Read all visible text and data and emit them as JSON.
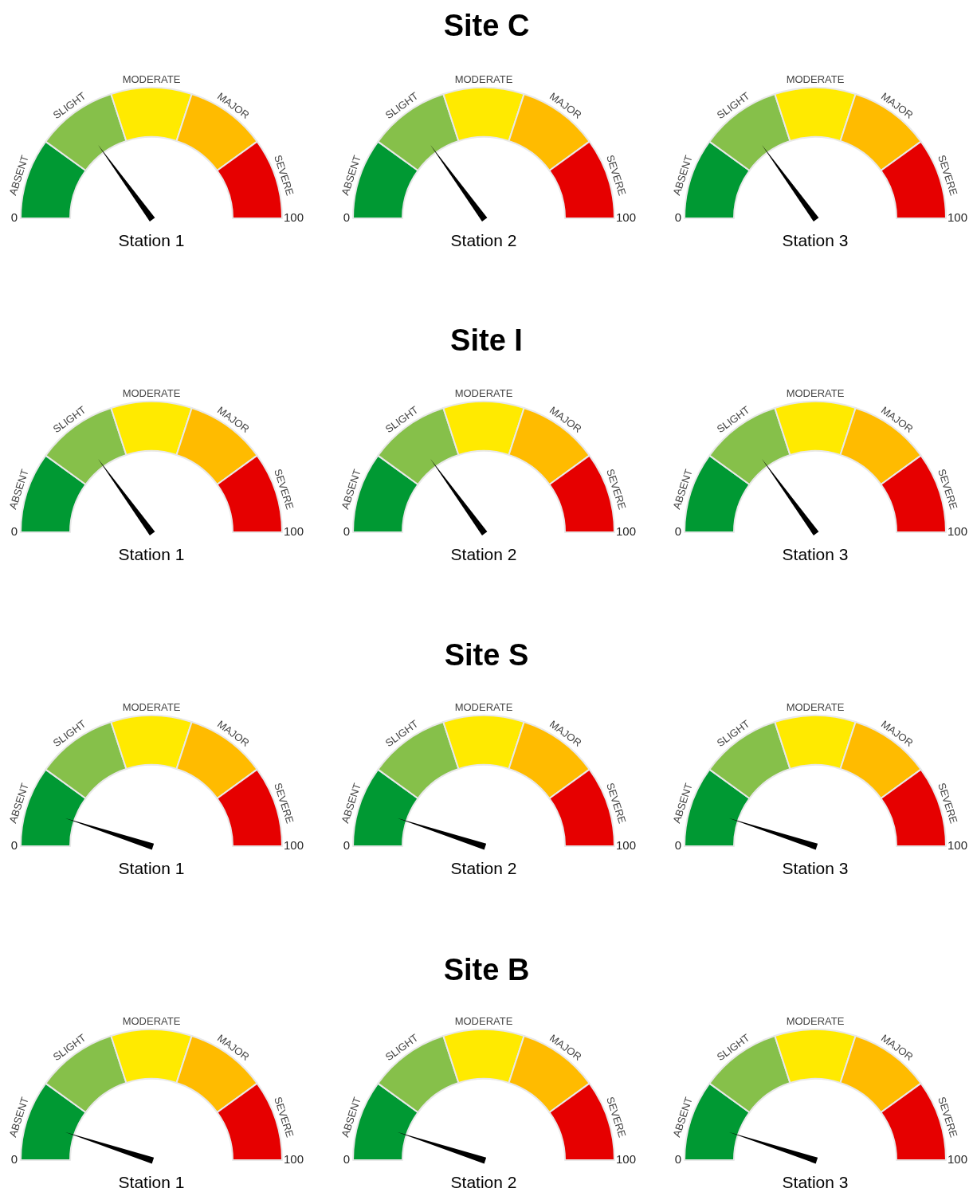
{
  "chart_data": [
    {
      "type": "other",
      "title": "Site C"
    },
    {
      "type": "donut",
      "title": "Station 1",
      "categories": [
        "ABSENT",
        "SLIGHT",
        "MODERATE",
        "MAJOR",
        "SEVERE"
      ],
      "values": [
        20,
        20,
        20,
        20,
        20
      ],
      "colors": [
        "#009933",
        "#86c04a",
        "#ffea00",
        "#ffbb00",
        "#e60000"
      ],
      "needle": "SLIGHT",
      "annotations": [
        "0",
        "100"
      ]
    },
    {
      "type": "donut",
      "title": "Station 2",
      "categories": [
        "ABSENT",
        "SLIGHT",
        "MODERATE",
        "MAJOR",
        "SEVERE"
      ],
      "values": [
        20,
        20,
        20,
        20,
        20
      ],
      "colors": [
        "#009933",
        "#86c04a",
        "#ffea00",
        "#ffbb00",
        "#e60000"
      ],
      "needle": "SLIGHT",
      "annotations": [
        "0",
        "100"
      ]
    },
    {
      "type": "donut",
      "title": "Station 3",
      "categories": [
        "ABSENT",
        "SLIGHT",
        "MODERATE",
        "MAJOR",
        "SEVERE"
      ],
      "values": [
        20,
        20,
        20,
        20,
        20
      ],
      "colors": [
        "#009933",
        "#86c04a",
        "#ffea00",
        "#ffbb00",
        "#e60000"
      ],
      "needle": "SLIGHT",
      "annotations": [
        "0",
        "100"
      ]
    },
    {
      "type": "other",
      "title": "Site I"
    },
    {
      "type": "donut",
      "title": "Station 1",
      "categories": [
        "ABSENT",
        "SLIGHT",
        "MODERATE",
        "MAJOR",
        "SEVERE"
      ],
      "values": [
        20,
        20,
        20,
        20,
        20
      ],
      "colors": [
        "#009933",
        "#86c04a",
        "#ffea00",
        "#ffbb00",
        "#e60000"
      ],
      "needle": "SLIGHT",
      "annotations": [
        "0",
        "100"
      ]
    },
    {
      "type": "donut",
      "title": "Station 2",
      "categories": [
        "ABSENT",
        "SLIGHT",
        "MODERATE",
        "MAJOR",
        "SEVERE"
      ],
      "values": [
        20,
        20,
        20,
        20,
        20
      ],
      "colors": [
        "#009933",
        "#86c04a",
        "#ffea00",
        "#ffbb00",
        "#e60000"
      ],
      "needle": "SLIGHT",
      "annotations": [
        "0",
        "100"
      ]
    },
    {
      "type": "donut",
      "title": "Station 3",
      "categories": [
        "ABSENT",
        "SLIGHT",
        "MODERATE",
        "MAJOR",
        "SEVERE"
      ],
      "values": [
        20,
        20,
        20,
        20,
        20
      ],
      "colors": [
        "#009933",
        "#86c04a",
        "#ffea00",
        "#ffbb00",
        "#e60000"
      ],
      "needle": "SLIGHT",
      "annotations": [
        "0",
        "100"
      ]
    },
    {
      "type": "other",
      "title": "Site S"
    },
    {
      "type": "donut",
      "title": "Station 1",
      "categories": [
        "ABSENT",
        "SLIGHT",
        "MODERATE",
        "MAJOR",
        "SEVERE"
      ],
      "values": [
        20,
        20,
        20,
        20,
        20
      ],
      "colors": [
        "#009933",
        "#86c04a",
        "#ffea00",
        "#ffbb00",
        "#e60000"
      ],
      "needle": "ABSENT",
      "annotations": [
        "0",
        "100"
      ]
    },
    {
      "type": "donut",
      "title": "Station 2",
      "categories": [
        "ABSENT",
        "SLIGHT",
        "MODERATE",
        "MAJOR",
        "SEVERE"
      ],
      "values": [
        20,
        20,
        20,
        20,
        20
      ],
      "colors": [
        "#009933",
        "#86c04a",
        "#ffea00",
        "#ffbb00",
        "#e60000"
      ],
      "needle": "ABSENT",
      "annotations": [
        "0",
        "100"
      ]
    },
    {
      "type": "donut",
      "title": "Station 3",
      "categories": [
        "ABSENT",
        "SLIGHT",
        "MODERATE",
        "MAJOR",
        "SEVERE"
      ],
      "values": [
        20,
        20,
        20,
        20,
        20
      ],
      "colors": [
        "#009933",
        "#86c04a",
        "#ffea00",
        "#ffbb00",
        "#e60000"
      ],
      "needle": "ABSENT",
      "annotations": [
        "0",
        "100"
      ]
    },
    {
      "type": "other",
      "title": "Site B"
    },
    {
      "type": "donut",
      "title": "Station 1",
      "categories": [
        "ABSENT",
        "SLIGHT",
        "MODERATE",
        "MAJOR",
        "SEVERE"
      ],
      "values": [
        20,
        20,
        20,
        20,
        20
      ],
      "colors": [
        "#009933",
        "#86c04a",
        "#ffea00",
        "#ffbb00",
        "#e60000"
      ],
      "needle": "ABSENT",
      "annotations": [
        "0",
        "100"
      ]
    },
    {
      "type": "donut",
      "title": "Station 2",
      "categories": [
        "ABSENT",
        "SLIGHT",
        "MODERATE",
        "MAJOR",
        "SEVERE"
      ],
      "values": [
        20,
        20,
        20,
        20,
        20
      ],
      "colors": [
        "#009933",
        "#86c04a",
        "#ffea00",
        "#ffbb00",
        "#e60000"
      ],
      "needle": "ABSENT",
      "annotations": [
        "0",
        "100"
      ]
    },
    {
      "type": "donut",
      "title": "Station 3",
      "categories": [
        "ABSENT",
        "SLIGHT",
        "MODERATE",
        "MAJOR",
        "SEVERE"
      ],
      "values": [
        20,
        20,
        20,
        20,
        20
      ],
      "colors": [
        "#009933",
        "#86c04a",
        "#ffea00",
        "#ffbb00",
        "#e60000"
      ],
      "needle": "ABSENT",
      "annotations": [
        "0",
        "100"
      ]
    }
  ]
}
